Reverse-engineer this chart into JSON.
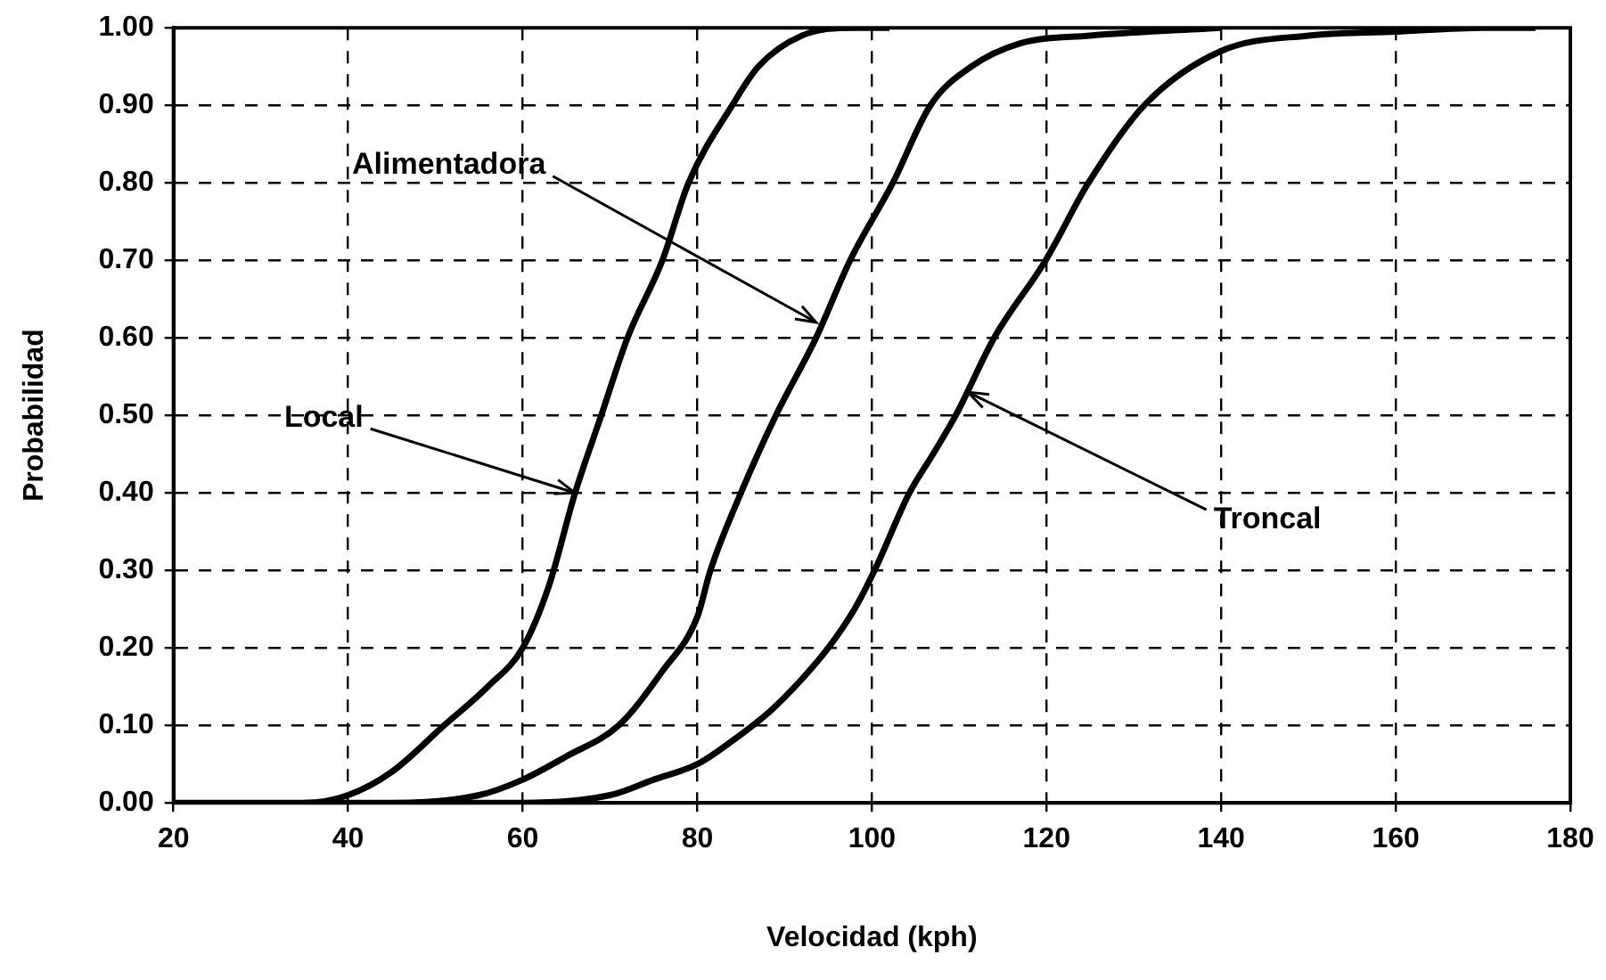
{
  "chart_data": {
    "type": "line",
    "xlabel": "Velocidad (kph)",
    "ylabel": "Probabilidad",
    "xlim": [
      20,
      180
    ],
    "xticks": [
      20,
      40,
      60,
      80,
      100,
      120,
      140,
      160,
      180
    ],
    "ylim": [
      0,
      1
    ],
    "yticks": [
      {
        "value": 0,
        "label": "0.00"
      },
      {
        "value": 0.1,
        "label": "0.10"
      },
      {
        "value": 0.2,
        "label": "0.20"
      },
      {
        "value": 0.3,
        "label": "0.30"
      },
      {
        "value": 0.4,
        "label": "0.40"
      },
      {
        "value": 0.5,
        "label": "0.50"
      },
      {
        "value": 0.6,
        "label": "0.60"
      },
      {
        "value": 0.7,
        "label": "0.70"
      },
      {
        "value": 0.8,
        "label": "0.80"
      },
      {
        "value": 0.9,
        "label": "0.90"
      },
      {
        "value": 1,
        "label": "1.00"
      }
    ],
    "grid": true,
    "legend": false,
    "marker": "none",
    "line_style": "solid",
    "series": [
      {
        "color": "#000000",
        "x": [
          20,
          35,
          40,
          45,
          51,
          56,
          60,
          63,
          66,
          69,
          72,
          76,
          79,
          84,
          87,
          92,
          98,
          102
        ],
        "values": [
          0,
          0,
          0.01,
          0.04,
          0.1,
          0.15,
          0.2,
          0.28,
          0.4,
          0.5,
          0.6,
          0.7,
          0.8,
          0.9,
          0.95,
          0.99,
          1,
          1
        ]
      },
      {
        "color": "#000000",
        "x": [
          35,
          45,
          55,
          60,
          65,
          71,
          76,
          80,
          81.5,
          85,
          89,
          93.6,
          97.5,
          102.4,
          106.7,
          111.4,
          117,
          125,
          140
        ],
        "values": [
          0,
          0,
          0.01,
          0.03,
          0.06,
          0.1,
          0.17,
          0.24,
          0.3,
          0.4,
          0.5,
          0.6,
          0.7,
          0.8,
          0.9,
          0.95,
          0.98,
          0.99,
          1
        ]
      },
      {
        "color": "#000000",
        "x": [
          50,
          60,
          70,
          75,
          80,
          84,
          88.5,
          92,
          95,
          98,
          100.3,
          104.3,
          107,
          109.6,
          114,
          119.9,
          124.8,
          131.2,
          140,
          150,
          160,
          170,
          176
        ],
        "values": [
          0,
          0,
          0.01,
          0.03,
          0.05,
          0.08,
          0.12,
          0.16,
          0.2,
          0.25,
          0.3,
          0.4,
          0.45,
          0.5,
          0.6,
          0.7,
          0.8,
          0.9,
          0.97,
          0.99,
          0.995,
          1,
          1
        ]
      }
    ],
    "annotations": [
      {
        "text": "Alimentadora",
        "x": 93.6,
        "y": 0.62
      },
      {
        "text": "Local",
        "x": 66,
        "y": 0.4
      },
      {
        "text": "Troncal",
        "x": 111,
        "y": 0.53
      }
    ]
  }
}
